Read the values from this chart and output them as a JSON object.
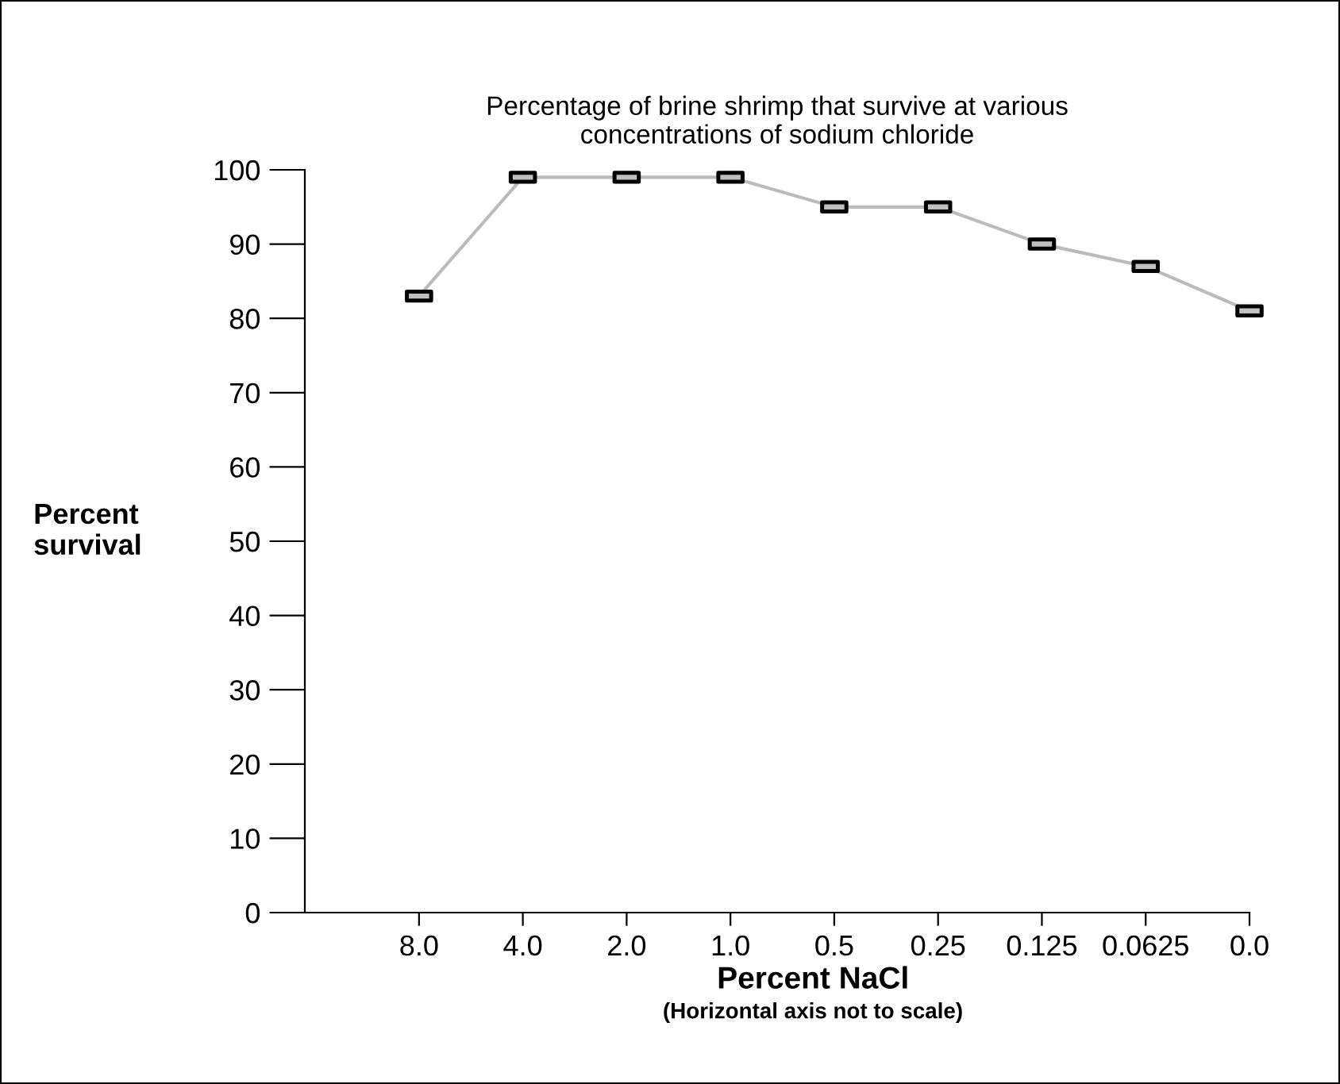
{
  "chart_data": {
    "type": "line",
    "title": "Percentage of brine shrimp that survive at various\nconcentrations of sodium chloride",
    "xlabel": "Percent NaCl",
    "annotations": [
      "(Horizontal axis not to scale)"
    ],
    "ylabel": "Percent\nsurvival",
    "categories": [
      "8.0",
      "4.0",
      "2.0",
      "1.0",
      "0.5",
      "0.25",
      "0.125",
      "0.0625",
      "0.0"
    ],
    "series": [
      {
        "color": "#bbbbbb",
        "values": [
          83,
          99,
          99,
          99,
          95,
          95,
          90,
          87,
          81
        ]
      }
    ],
    "ylim": [
      0,
      100
    ],
    "yticks": [
      0,
      10,
      20,
      30,
      40,
      50,
      60,
      70,
      80,
      90,
      100
    ],
    "grid": false,
    "marker": "square",
    "line_style": "solid"
  }
}
